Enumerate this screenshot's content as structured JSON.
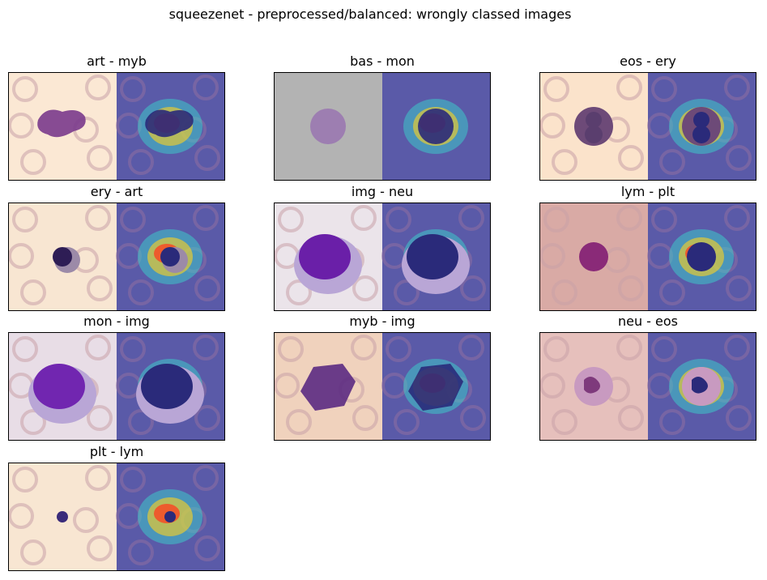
{
  "figure": {
    "suptitle": "squeezenet - preprocessed/balanced: wrongly classed images"
  },
  "panels": [
    {
      "title": "art - myb",
      "left_bg": "#fbe8d4",
      "cell": "blob",
      "cell_color": "#7a3a8c"
    },
    {
      "title": "bas - mon",
      "left_bg": "#b3b3b3",
      "cell": "round-speckled",
      "cell_color": "#9a78b0"
    },
    {
      "title": "eos - ery",
      "left_bg": "#fbe3cb",
      "cell": "bilobed",
      "cell_color": "#5a3e6e"
    },
    {
      "title": "ery - art",
      "left_bg": "#f8e6d2",
      "cell": "small-dark",
      "cell_color": "#2e1d55"
    },
    {
      "title": "img - neu",
      "left_bg": "#ebe4ea",
      "cell": "large-purple",
      "cell_color": "#6a1fa8"
    },
    {
      "title": "lym - plt",
      "left_bg": "#d9aaa5",
      "cell": "lymphocyte",
      "cell_color": "#8a2a78"
    },
    {
      "title": "mon - img",
      "left_bg": "#e8dde6",
      "cell": "large-purple",
      "cell_color": "#7126b0"
    },
    {
      "title": "myb - img",
      "left_bg": "#f0d2bd",
      "cell": "myeloblast",
      "cell_color": "#5b2a82"
    },
    {
      "title": "neu - eos",
      "left_bg": "#e6c0bc",
      "cell": "neutrophil",
      "cell_color": "#7e3a7c"
    },
    {
      "title": "plt - lym",
      "left_bg": "#f8e6d2",
      "cell": "tiny",
      "cell_color": "#3a2b7a"
    }
  ],
  "overlay": {
    "tint": "#5a5aa8",
    "hot": "#ff3b1e",
    "warm": "#ffd21e",
    "cool": "#38e0d0"
  }
}
